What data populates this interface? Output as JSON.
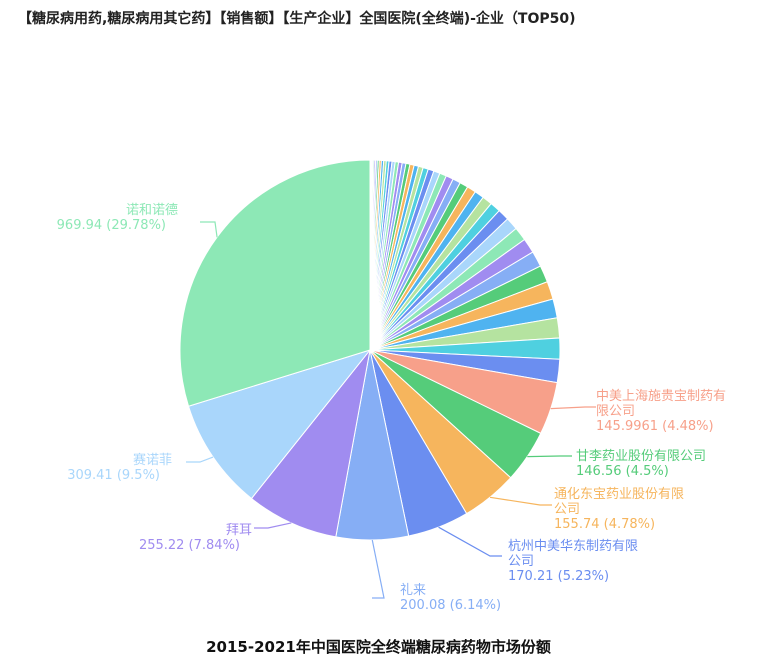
{
  "title": "【糖尿病用药,糖尿病用其它药】【销售额】【生产企业】全国医院(全终端)-企业（TOP50)",
  "caption": "2015-2021年中国医院全终端糖尿病药物市场份额",
  "chart_data": {
    "type": "pie",
    "unit_note": "",
    "labeled_slices": [
      {
        "name": "诺和诺德",
        "value": "969.94",
        "pct": "(29.78%)",
        "share": 29.78,
        "color": "#8de8b6"
      },
      {
        "name": "赛诺菲",
        "value": "309.41",
        "pct": "(9.5%)",
        "share": 9.5,
        "color": "#a9d6fb"
      },
      {
        "name": "拜耳",
        "value": "255.22",
        "pct": "(7.84%)",
        "share": 7.84,
        "color": "#a08cf0"
      },
      {
        "name": "礼来",
        "value": "200.08",
        "pct": "(6.14%)",
        "share": 6.14,
        "color": "#86aef5"
      },
      {
        "name": "杭州中美华东制药有限公司",
        "name_lines": [
          "杭州中美华东制药有限",
          "公司"
        ],
        "value": "170.21",
        "pct": "(5.23%)",
        "share": 5.23,
        "color": "#6b8ef0"
      },
      {
        "name": "通化东宝药业股份有限公司",
        "name_lines": [
          "通化东宝药业股份有限",
          "公司"
        ],
        "value": "155.74",
        "pct": "(4.78%)",
        "share": 4.78,
        "color": "#f6b55d"
      },
      {
        "name": "甘李药业股份有限公司",
        "name_lines": [
          "甘李药业股份有限公司"
        ],
        "value": "146.56",
        "pct": "(4.5%)",
        "share": 4.5,
        "color": "#55cc7a"
      },
      {
        "name": "中美上海施贵宝制药有限公司",
        "name_lines": [
          "中美上海施贵宝制药有",
          "限公司"
        ],
        "value": "145.9961",
        "pct": "(4.48%)",
        "share": 4.48,
        "color": "#f7a08a"
      }
    ],
    "unlabeled_slice_shares": [
      2.2,
      2.0,
      1.9,
      1.8,
      1.7,
      1.6,
      1.5,
      1.4,
      1.3,
      1.2,
      1.1,
      1.0,
      0.95,
      0.9,
      0.85,
      0.8,
      0.75,
      0.7,
      0.65,
      0.6,
      0.55,
      0.5,
      0.45,
      0.42,
      0.4,
      0.38,
      0.36,
      0.34,
      0.32,
      0.3,
      0.28,
      0.26,
      0.24,
      0.22,
      0.2,
      0.18,
      0.16,
      0.14,
      0.12,
      0.1,
      0.09,
      0.08
    ],
    "unlabeled_palette": [
      "#4fd0e0",
      "#6b8ef0",
      "#a9d6fb",
      "#8de8b6",
      "#a08cf0",
      "#86aef5",
      "#55cc7a",
      "#f6b55d",
      "#4fb3f0",
      "#b5e3a0"
    ]
  }
}
